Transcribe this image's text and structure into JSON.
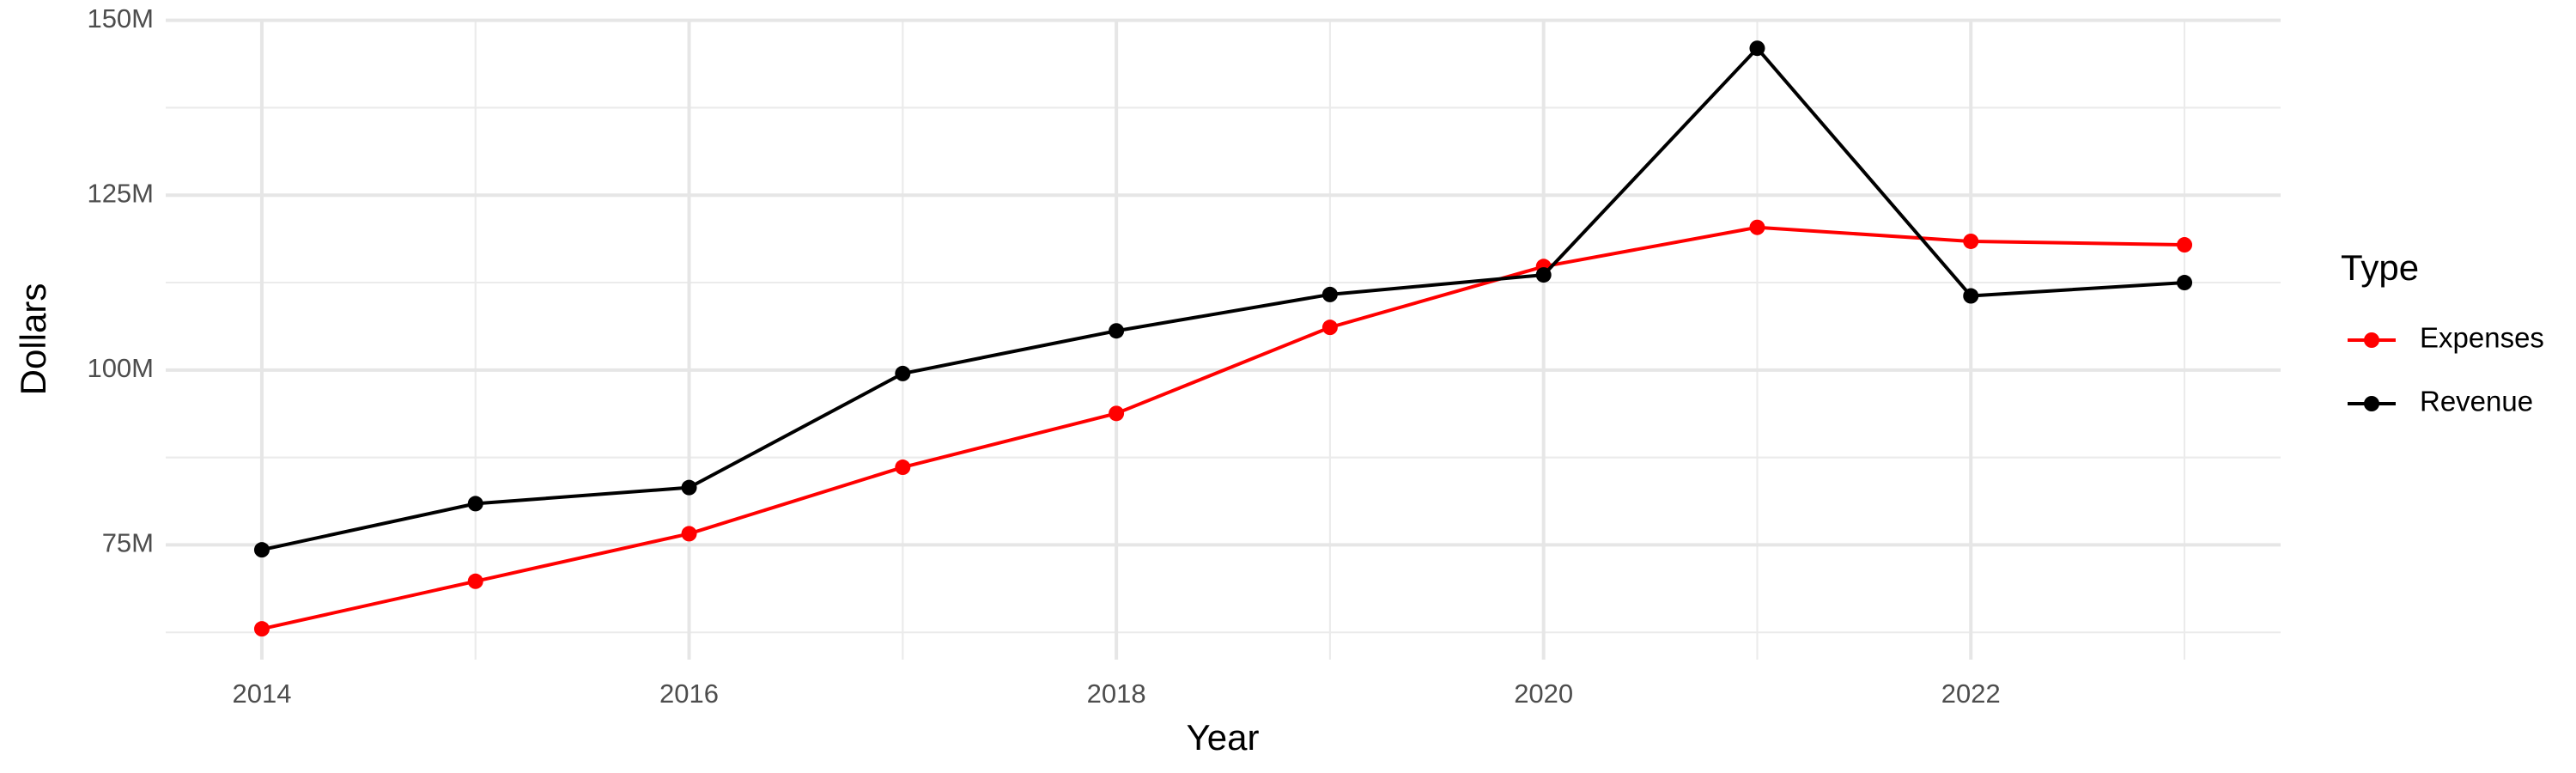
{
  "chart_data": {
    "type": "line",
    "x_label": "Year",
    "y_label": "Dollars",
    "legend_title": "Type",
    "legend": "right",
    "grid": true,
    "x": [
      2014,
      2015,
      2016,
      2017,
      2018,
      2019,
      2020,
      2021,
      2022,
      2023
    ],
    "series": [
      {
        "name": "Expenses",
        "color": "#ff0000",
        "values": [
          63000000,
          69800000,
          76600000,
          86100000,
          93800000,
          106100000,
          114800000,
          120400000,
          118400000,
          117900000
        ]
      },
      {
        "name": "Revenue",
        "color": "#000000",
        "values": [
          74300000,
          80900000,
          83200000,
          99500000,
          105600000,
          110800000,
          113600000,
          146000000,
          110600000,
          112500000
        ]
      }
    ],
    "xlim": [
      2013.55,
      2023.45
    ],
    "xticks": [
      2014,
      2016,
      2018,
      2020,
      2022
    ],
    "ylim": [
      58600000,
      150200000
    ],
    "yticks": [
      {
        "value": 75000000,
        "label": "75M"
      },
      {
        "value": 100000000,
        "label": "100M"
      },
      {
        "value": 125000000,
        "label": "125M"
      },
      {
        "value": 150000000,
        "label": "150M"
      }
    ]
  }
}
